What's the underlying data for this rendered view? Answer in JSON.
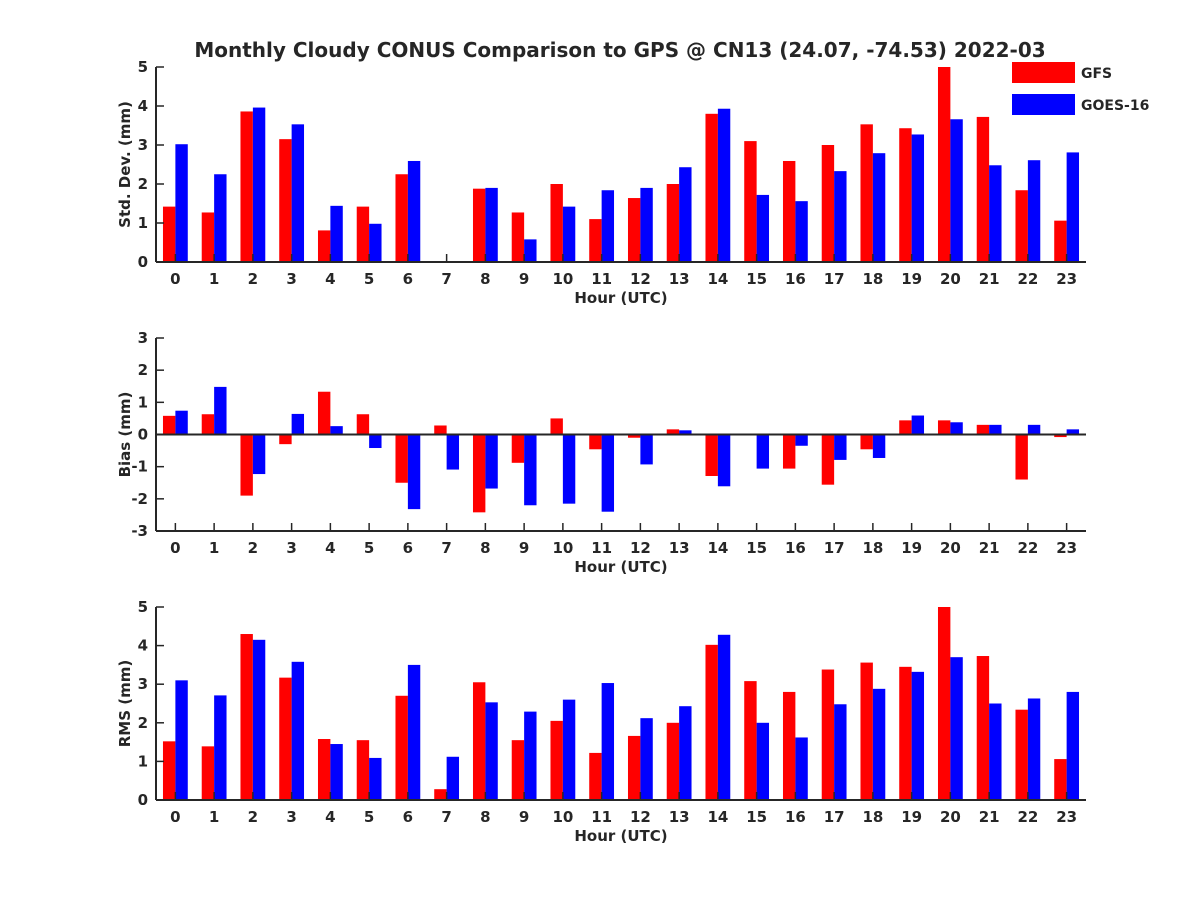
{
  "title": "Monthly Cloudy CONUS Comparison to GPS @ CN13 (24.07, -74.53) 2022-03",
  "legend": [
    {
      "label": "GFS",
      "color": "#ff0000"
    },
    {
      "label": "GOES-16",
      "color": "#0000ff"
    }
  ],
  "chart_data": [
    {
      "type": "bar",
      "categories": [
        "0",
        "1",
        "2",
        "3",
        "4",
        "5",
        "6",
        "7",
        "8",
        "9",
        "10",
        "11",
        "12",
        "13",
        "14",
        "15",
        "16",
        "17",
        "18",
        "19",
        "20",
        "21",
        "22",
        "23"
      ],
      "xlabel": "Hour (UTC)",
      "ylabel": "Std. Dev. (mm)",
      "ylim": [
        0,
        5
      ],
      "yticks": [
        "0",
        "1",
        "2",
        "3",
        "4",
        "5"
      ],
      "series": [
        {
          "name": "GFS",
          "color": "#ff0000",
          "values": [
            1.42,
            1.27,
            3.86,
            3.15,
            0.81,
            1.42,
            2.25,
            0.0,
            1.88,
            1.27,
            2.0,
            1.1,
            1.64,
            2.0,
            3.8,
            3.1,
            2.59,
            3.0,
            3.53,
            3.43,
            5.0,
            3.72,
            1.84,
            1.06
          ]
        },
        {
          "name": "GOES-16",
          "color": "#0000ff",
          "values": [
            3.02,
            2.25,
            3.96,
            3.53,
            1.44,
            0.98,
            2.59,
            0.0,
            1.9,
            0.58,
            1.42,
            1.84,
            1.9,
            2.43,
            3.93,
            1.72,
            1.56,
            2.33,
            2.79,
            3.27,
            3.66,
            2.48,
            2.61,
            2.81
          ]
        }
      ]
    },
    {
      "type": "bar",
      "categories": [
        "0",
        "1",
        "2",
        "3",
        "4",
        "5",
        "6",
        "7",
        "8",
        "9",
        "10",
        "11",
        "12",
        "13",
        "14",
        "15",
        "16",
        "17",
        "18",
        "19",
        "20",
        "21",
        "22",
        "23"
      ],
      "xlabel": "Hour (UTC)",
      "ylabel": "Bias (mm)",
      "ylim": [
        -3,
        3
      ],
      "yticks": [
        "-3",
        "-2",
        "-1",
        "0",
        "1",
        "2",
        "3"
      ],
      "series": [
        {
          "name": "GFS",
          "color": "#ff0000",
          "values": [
            0.58,
            0.63,
            -1.9,
            -0.3,
            1.33,
            0.63,
            -1.5,
            0.28,
            -2.42,
            -0.88,
            0.5,
            -0.46,
            -0.1,
            0.16,
            -1.29,
            0.02,
            -1.06,
            -1.56,
            -0.46,
            0.44,
            0.44,
            0.3,
            -1.4,
            -0.08
          ]
        },
        {
          "name": "GOES-16",
          "color": "#0000ff",
          "values": [
            0.74,
            1.48,
            -1.23,
            0.64,
            0.26,
            -0.42,
            -2.32,
            -1.09,
            -1.68,
            -2.2,
            -2.15,
            -2.4,
            -0.93,
            0.13,
            -1.61,
            -1.06,
            -0.35,
            -0.79,
            -0.73,
            0.59,
            0.38,
            0.3,
            0.3,
            0.16
          ]
        }
      ]
    },
    {
      "type": "bar",
      "categories": [
        "0",
        "1",
        "2",
        "3",
        "4",
        "5",
        "6",
        "7",
        "8",
        "9",
        "10",
        "11",
        "12",
        "13",
        "14",
        "15",
        "16",
        "17",
        "18",
        "19",
        "20",
        "21",
        "22",
        "23"
      ],
      "xlabel": "Hour (UTC)",
      "ylabel": "RMS (mm)",
      "ylim": [
        0,
        5
      ],
      "yticks": [
        "0",
        "1",
        "2",
        "3",
        "4",
        "5"
      ],
      "series": [
        {
          "name": "GFS",
          "color": "#ff0000",
          "values": [
            1.52,
            1.39,
            4.3,
            3.17,
            1.58,
            1.55,
            2.7,
            0.28,
            3.05,
            1.55,
            2.05,
            1.22,
            1.66,
            2.0,
            4.02,
            3.08,
            2.8,
            3.38,
            3.56,
            3.45,
            5.0,
            3.73,
            2.34,
            1.06
          ]
        },
        {
          "name": "GOES-16",
          "color": "#0000ff",
          "values": [
            3.1,
            2.71,
            4.15,
            3.58,
            1.45,
            1.09,
            3.5,
            1.12,
            2.53,
            2.29,
            2.6,
            3.03,
            2.12,
            2.43,
            4.28,
            2.0,
            1.62,
            2.48,
            2.88,
            3.32,
            3.7,
            2.5,
            2.63,
            2.8
          ]
        }
      ]
    }
  ]
}
